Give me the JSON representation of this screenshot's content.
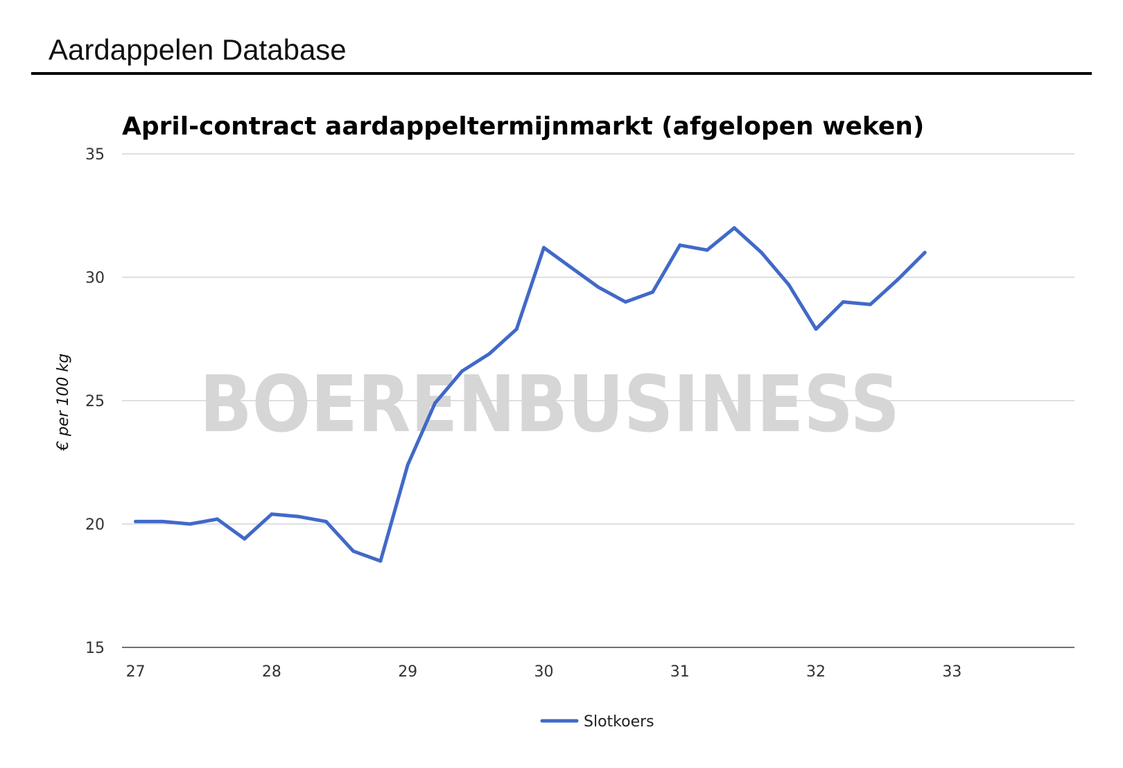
{
  "header": {
    "title": "Aardappelen Database"
  },
  "watermark": {
    "text": "BOERENBUSINESS"
  },
  "chart_data": {
    "type": "line",
    "title": "April-contract aardappeltermijnmarkt (afgelopen weken)",
    "xlabel": "",
    "ylabel": "€ per 100 kg",
    "xlim": [
      26.9,
      33.9
    ],
    "ylim": [
      15,
      35
    ],
    "xticks": [
      27,
      28,
      29,
      30,
      31,
      32,
      33
    ],
    "yticks": [
      15,
      20,
      25,
      30,
      35
    ],
    "grid": true,
    "legend_position": "bottom",
    "series": [
      {
        "name": "Slotkoers",
        "color": "#4169c8",
        "x": [
          27.0,
          27.2,
          27.4,
          27.6,
          27.8,
          28.0,
          28.2,
          28.4,
          28.6,
          28.8,
          29.0,
          29.2,
          29.4,
          29.6,
          29.8,
          30.0,
          30.2,
          30.4,
          30.6,
          30.8,
          31.0,
          31.2,
          31.4,
          31.6,
          31.8,
          32.0,
          32.2,
          32.4,
          32.6,
          32.8
        ],
        "y": [
          20.1,
          20.1,
          20.0,
          20.2,
          19.4,
          20.4,
          20.3,
          20.1,
          18.9,
          18.5,
          22.4,
          24.9,
          26.2,
          26.9,
          27.9,
          31.2,
          30.4,
          29.6,
          29.0,
          29.4,
          31.3,
          31.1,
          32.0,
          31.0,
          29.7,
          27.9,
          29.0,
          28.9,
          29.9,
          31.0
        ]
      }
    ]
  }
}
